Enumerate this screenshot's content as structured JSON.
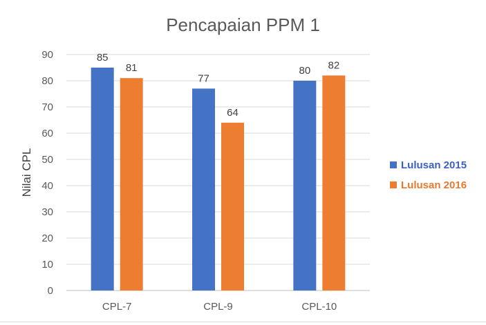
{
  "chart_data": {
    "type": "bar",
    "title": "Pencapaian PPM 1",
    "ylabel": "Nilai CPL",
    "xlabel": "",
    "categories": [
      "CPL-7",
      "CPL-9",
      "CPL-10"
    ],
    "series": [
      {
        "name": "Lulusan 2015",
        "values": [
          85,
          77,
          80
        ],
        "color": "#4472c4"
      },
      {
        "name": "Lulusan 2016",
        "values": [
          81,
          64,
          82
        ],
        "color": "#ed7d31"
      }
    ],
    "ylim": [
      0,
      90
    ],
    "yticks": [
      0,
      10,
      20,
      30,
      40,
      50,
      60,
      70,
      80,
      90
    ],
    "grid": true,
    "legend_position": "right"
  }
}
